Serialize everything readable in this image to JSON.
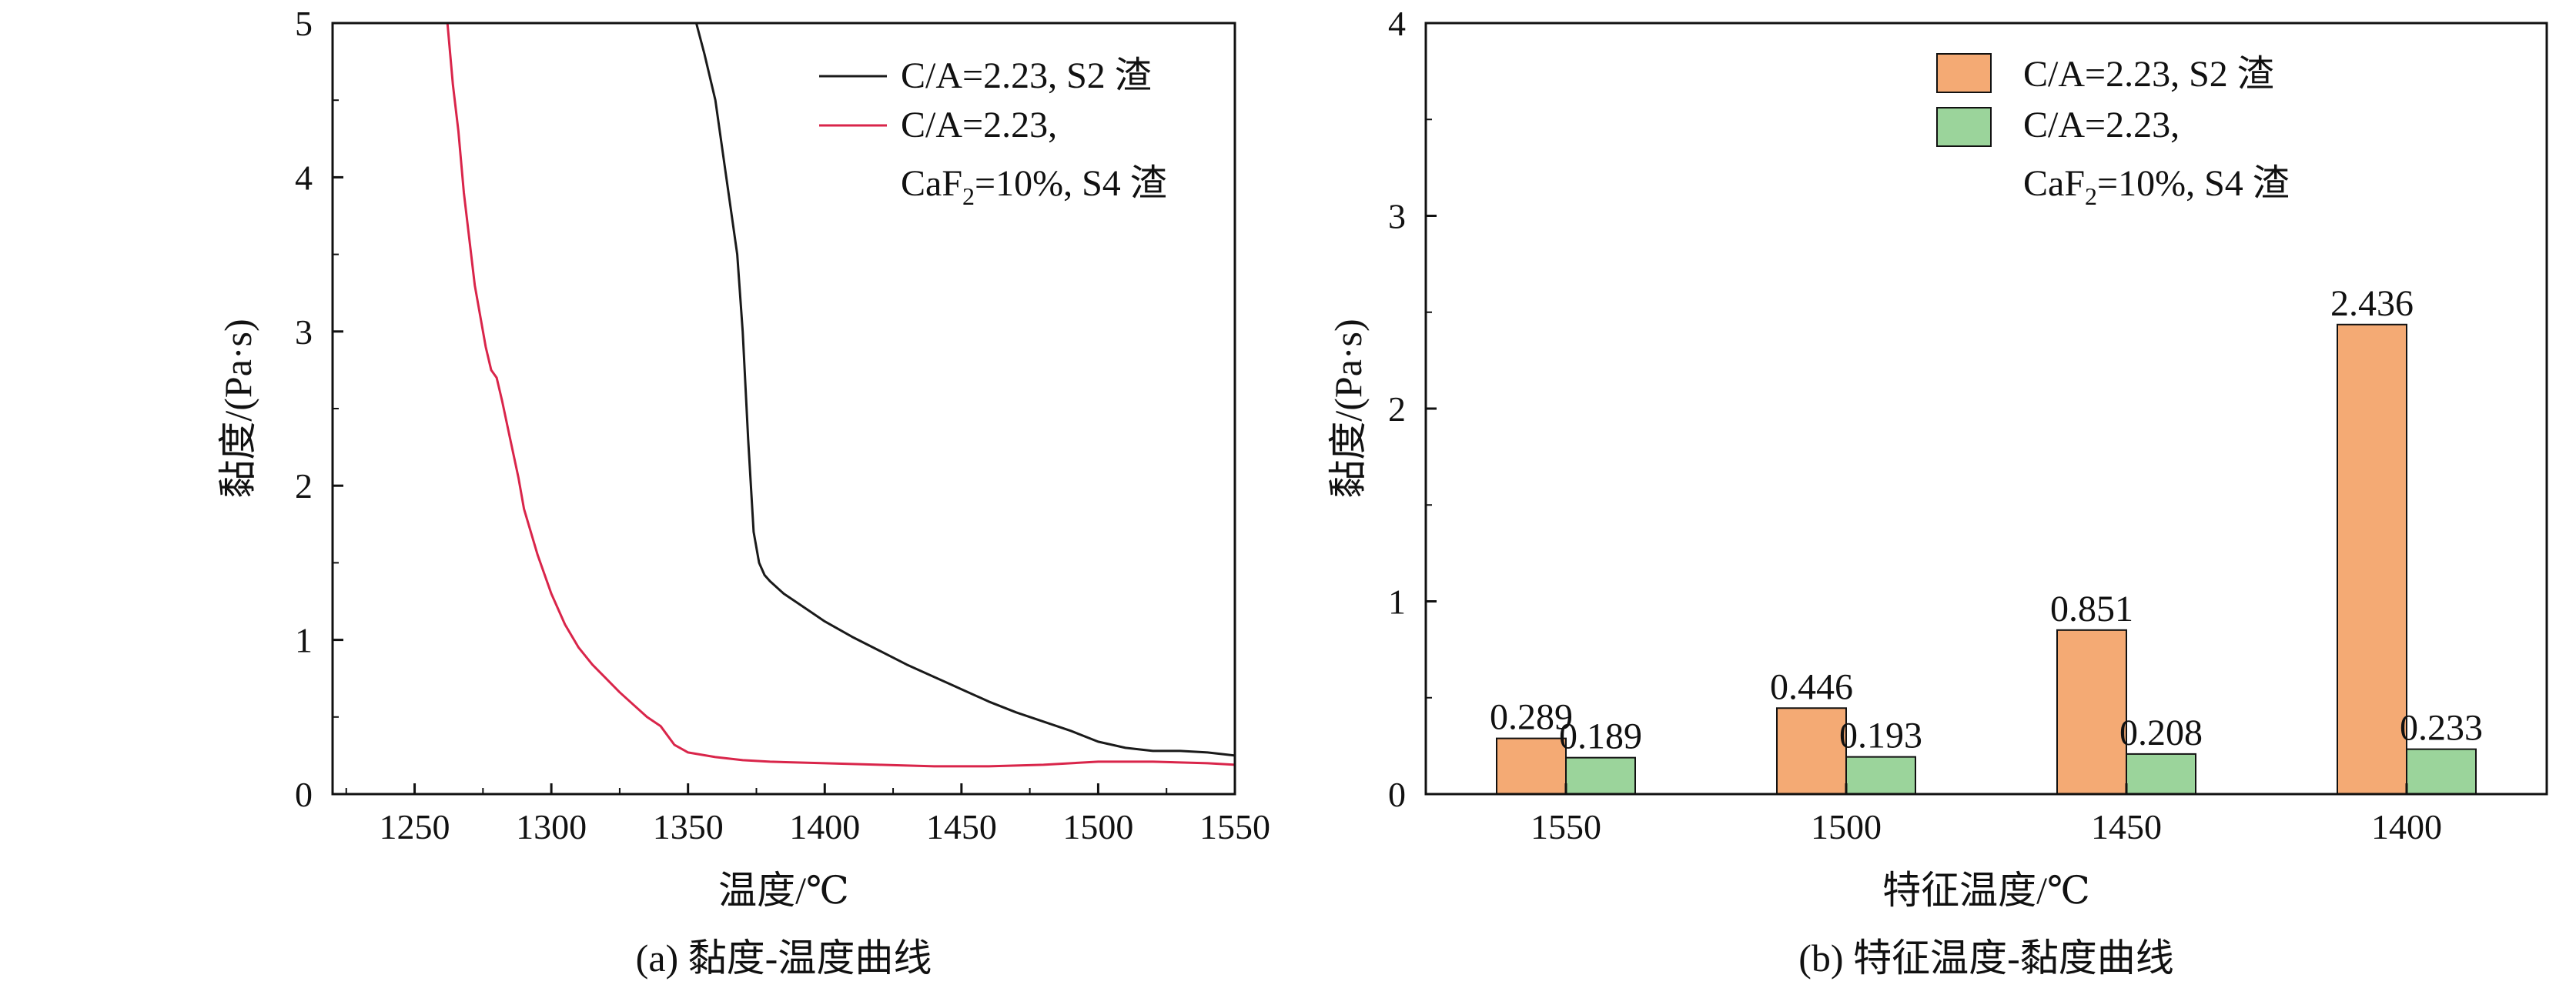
{
  "chart_data": [
    {
      "type": "line",
      "caption": "(a) 黏度-温度曲线",
      "xlabel": "温度/℃",
      "ylabel": "黏度/(Pa·s)",
      "xlim": [
        1220,
        1550
      ],
      "ylim": [
        0,
        5
      ],
      "xticks": [
        1250,
        1300,
        1350,
        1400,
        1450,
        1500,
        1550
      ],
      "yticks": [
        0,
        1,
        2,
        3,
        4,
        5
      ],
      "legend_position": "top-right",
      "series": [
        {
          "name": "C/A=2.23, S2 渣",
          "color": "#1a1a1a",
          "x": [
            1353,
            1356,
            1360,
            1364,
            1368,
            1370,
            1372,
            1374,
            1376,
            1378,
            1380,
            1385,
            1390,
            1395,
            1400,
            1410,
            1420,
            1430,
            1440,
            1450,
            1460,
            1470,
            1480,
            1490,
            1500,
            1510,
            1520,
            1530,
            1540,
            1550
          ],
          "y": [
            5.0,
            4.8,
            4.5,
            4.0,
            3.5,
            3.0,
            2.3,
            1.7,
            1.5,
            1.42,
            1.38,
            1.3,
            1.24,
            1.18,
            1.12,
            1.02,
            0.93,
            0.84,
            0.76,
            0.68,
            0.6,
            0.53,
            0.47,
            0.41,
            0.34,
            0.3,
            0.28,
            0.28,
            0.27,
            0.25
          ]
        },
        {
          "name_line1": "C/A=2.23,",
          "name_line2_pre": "CaF",
          "name_line2_sub": "2",
          "name_line2_post": "=10%, S4 渣",
          "color": "#d9254a",
          "x": [
            1262,
            1264,
            1266,
            1268,
            1270,
            1272,
            1274,
            1276,
            1278,
            1280,
            1282,
            1285,
            1288,
            1290,
            1295,
            1300,
            1305,
            1310,
            1315,
            1320,
            1325,
            1330,
            1335,
            1340,
            1345,
            1350,
            1360,
            1370,
            1380,
            1400,
            1420,
            1440,
            1460,
            1480,
            1500,
            1520,
            1540,
            1550
          ],
          "y": [
            5.0,
            4.6,
            4.3,
            3.9,
            3.6,
            3.3,
            3.1,
            2.9,
            2.75,
            2.7,
            2.55,
            2.3,
            2.05,
            1.85,
            1.55,
            1.3,
            1.1,
            0.95,
            0.84,
            0.75,
            0.66,
            0.58,
            0.5,
            0.44,
            0.32,
            0.27,
            0.24,
            0.22,
            0.21,
            0.2,
            0.19,
            0.18,
            0.18,
            0.19,
            0.21,
            0.21,
            0.2,
            0.19
          ]
        }
      ]
    },
    {
      "type": "bar",
      "caption": "(b) 特征温度-黏度曲线",
      "xlabel": "特征温度/℃",
      "ylabel": "黏度/(Pa·s)",
      "ylim": [
        0,
        4
      ],
      "yticks": [
        0,
        1,
        2,
        3,
        4
      ],
      "categories": [
        "1550",
        "1500",
        "1450",
        "1400"
      ],
      "legend_position": "top-right",
      "series": [
        {
          "name": "C/A=2.23, S2 渣",
          "color": "#f4aa74",
          "values": [
            0.289,
            0.446,
            0.851,
            2.436
          ],
          "labels": [
            "0.289",
            "0.446",
            "0.851",
            "2.436"
          ]
        },
        {
          "name_line1": "C/A=2.23,",
          "name_line2_pre": "CaF",
          "name_line2_sub": "2",
          "name_line2_post": "=10%, S4 渣",
          "color": "#9bd49b",
          "values": [
            0.189,
            0.193,
            0.208,
            0.233
          ],
          "labels": [
            "0.189",
            "0.193",
            "0.208",
            "0.233"
          ]
        }
      ]
    }
  ]
}
